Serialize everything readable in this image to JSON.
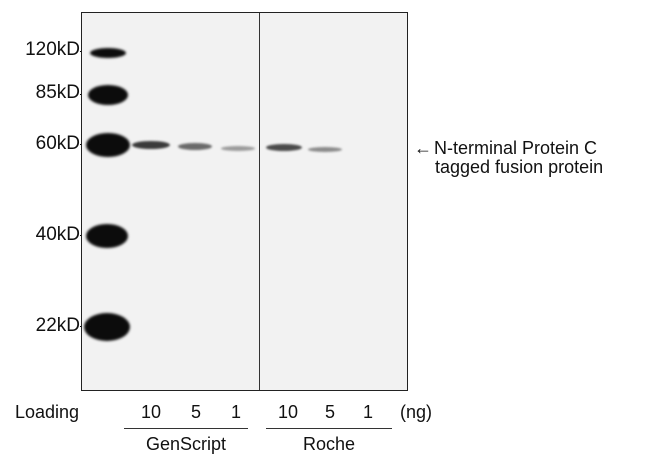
{
  "mw_markers": [
    "120kD",
    "85kD",
    "60kD",
    "40kD",
    "22kD"
  ],
  "annotation": {
    "arrow": "←",
    "line1": "N-terminal Protein C",
    "line2": "tagged fusion protein"
  },
  "loading_label": "Loading",
  "unit_label": "(ng)",
  "groups": [
    {
      "name": "GenScript",
      "amounts": [
        "10",
        "5",
        "1"
      ]
    },
    {
      "name": "Roche",
      "amounts": [
        "10",
        "5",
        "1"
      ]
    }
  ]
}
